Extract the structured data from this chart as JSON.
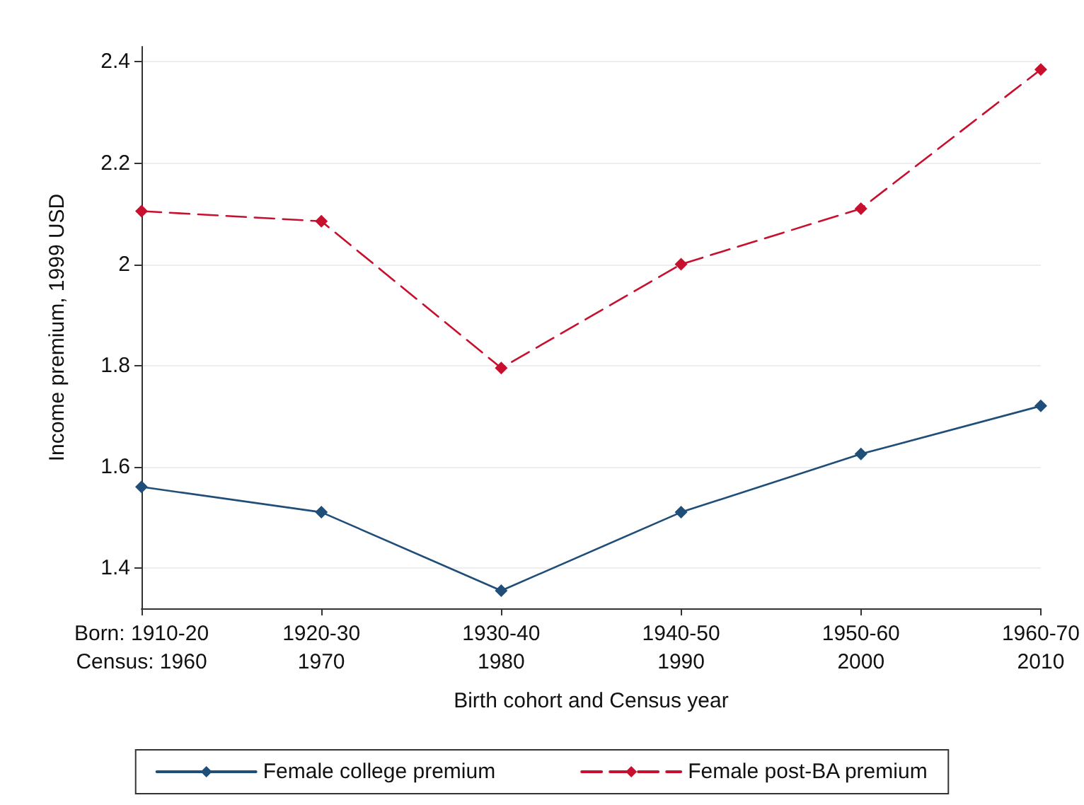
{
  "chart_data": {
    "type": "line",
    "xlabel": "Birth cohort and Census year",
    "ylabel": "Income premium, 1999 USD",
    "categories": [
      "Born: 1910-20\nCensus: 1960",
      "1920-30\n1970",
      "1930-40\n1980",
      "1940-50\n1990",
      "1950-60\n2000",
      "1960-70\n2010"
    ],
    "series": [
      {
        "name": "Female college premium",
        "color": "#1f4e79",
        "line_style": "solid",
        "values": [
          1.56,
          1.51,
          1.355,
          1.51,
          1.625,
          1.72
        ]
      },
      {
        "name": "Female post-BA premium",
        "color": "#c8102e",
        "line_style": "dashed",
        "values": [
          2.105,
          2.085,
          1.795,
          2.0,
          2.11,
          2.385
        ]
      }
    ],
    "ylim": [
      1.32,
      2.43
    ],
    "yticks": [
      1.4,
      1.6,
      1.8,
      2,
      2.2,
      2.4
    ],
    "grid": "y",
    "legend": "bottom",
    "marker": "diamond"
  }
}
